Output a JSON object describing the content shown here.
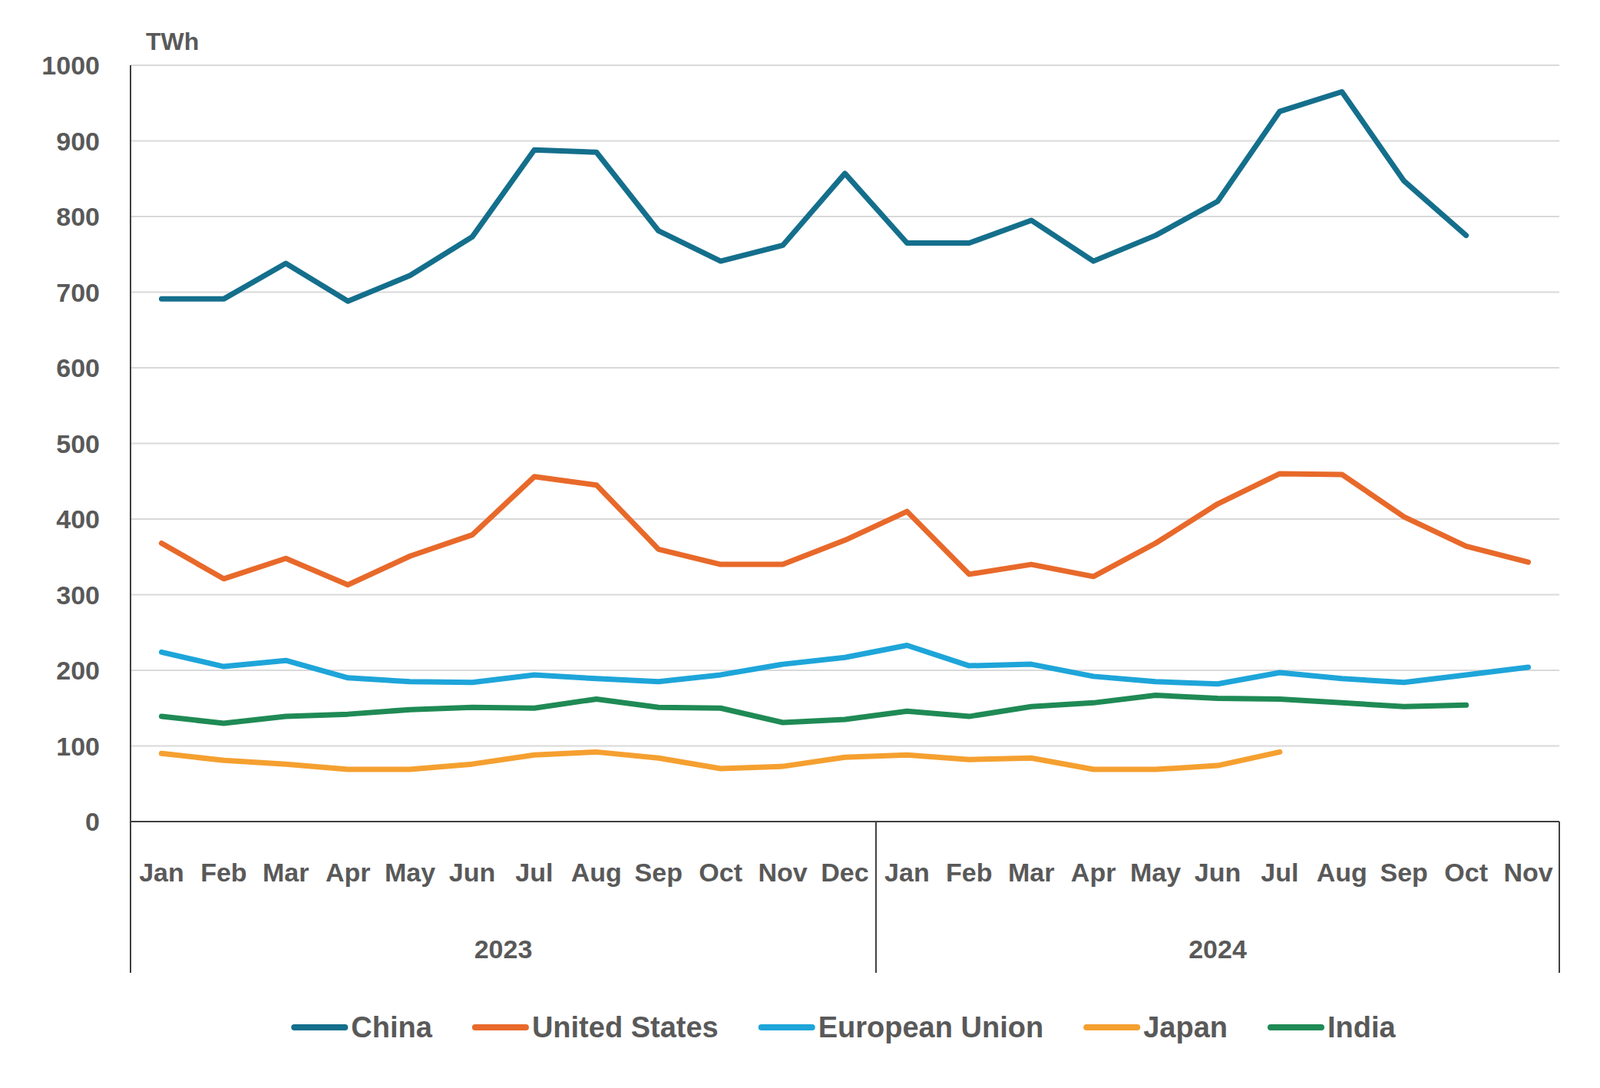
{
  "chart_data": {
    "type": "line",
    "y_label": "TWh",
    "categories": [
      "Jan",
      "Feb",
      "Mar",
      "Apr",
      "May",
      "Jun",
      "Jul",
      "Aug",
      "Sep",
      "Oct",
      "Nov",
      "Dec",
      "Jan",
      "Feb",
      "Mar",
      "Apr",
      "May",
      "Jun",
      "Jul",
      "Aug",
      "Sep",
      "Oct",
      "Nov"
    ],
    "groups": [
      {
        "label": "2023",
        "count": 12
      },
      {
        "label": "2024",
        "count": 11
      }
    ],
    "series": [
      {
        "name": "China",
        "color": "#146f8c",
        "values": [
          691,
          691,
          738,
          688,
          722,
          773,
          888,
          885,
          781,
          741,
          762,
          857,
          765,
          765,
          795,
          741,
          775,
          820,
          939,
          965,
          847,
          775,
          null
        ]
      },
      {
        "name": "United States",
        "color": "#e8692a",
        "values": [
          368,
          321,
          348,
          313,
          351,
          379,
          456,
          445,
          360,
          340,
          340,
          372,
          410,
          327,
          340,
          324,
          368,
          420,
          460,
          459,
          403,
          364,
          343
        ]
      },
      {
        "name": "European Union",
        "color": "#1ea5d9",
        "values": [
          224,
          205,
          213,
          190,
          185,
          184,
          194,
          189,
          185,
          194,
          208,
          217,
          233,
          206,
          208,
          192,
          185,
          182,
          197,
          189,
          184,
          194,
          204
        ]
      },
      {
        "name": "Japan",
        "color": "#f5a030",
        "values": [
          90,
          81,
          76,
          69,
          69,
          76,
          88,
          92,
          84,
          70,
          73,
          85,
          88,
          82,
          84,
          69,
          69,
          74,
          92,
          null,
          null,
          null,
          null
        ]
      },
      {
        "name": "India",
        "color": "#1f8a55",
        "values": [
          139,
          130,
          139,
          142,
          148,
          151,
          150,
          162,
          151,
          150,
          131,
          135,
          146,
          139,
          152,
          157,
          167,
          163,
          162,
          157,
          152,
          154,
          null
        ]
      }
    ],
    "ylim": [
      0,
      1000
    ],
    "yticks": [
      0,
      100,
      200,
      300,
      400,
      500,
      600,
      700,
      800,
      900,
      1000
    ],
    "grid": true,
    "legend": "bottom"
  }
}
